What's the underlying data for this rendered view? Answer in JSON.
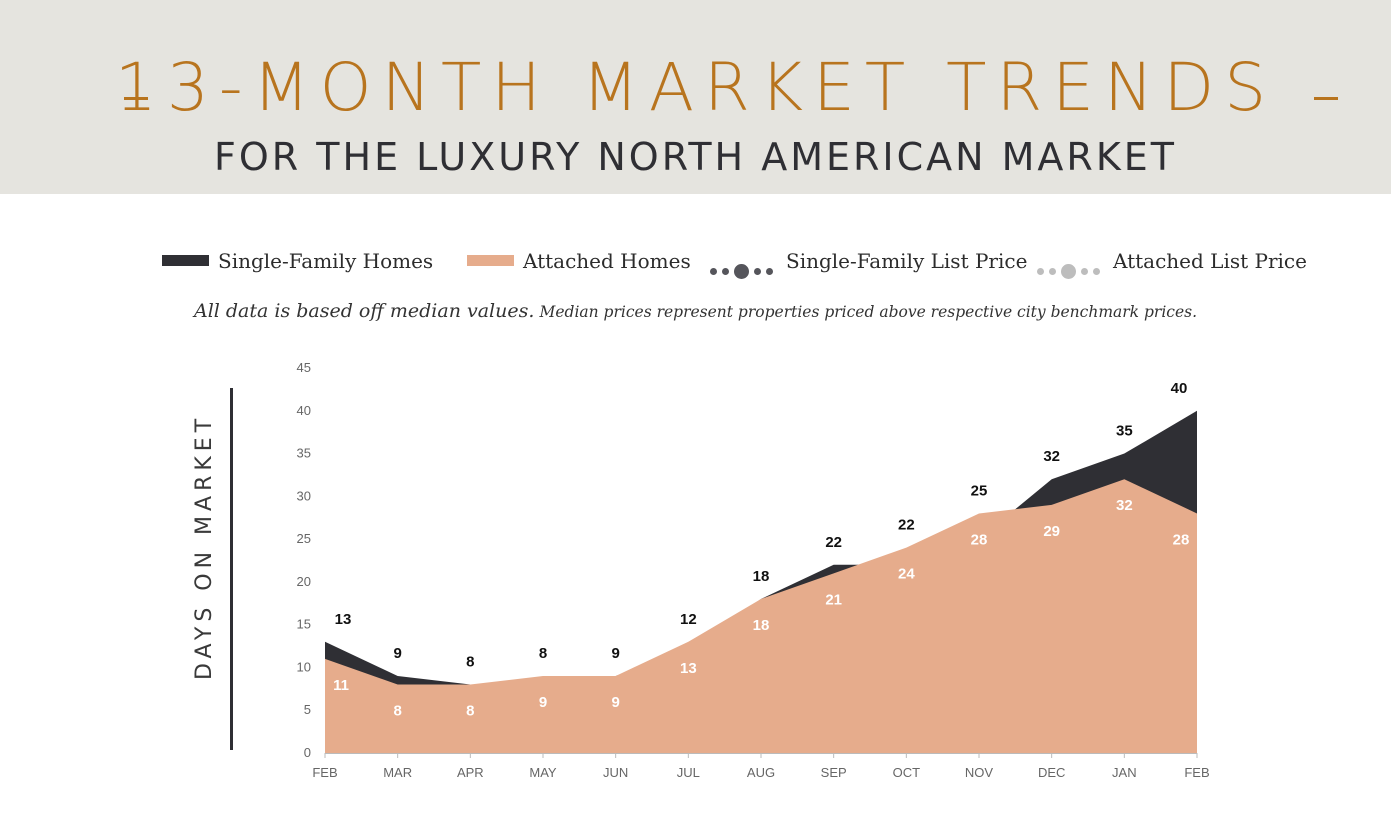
{
  "header": {
    "title": "13-MONTH MARKET TRENDS",
    "subtitle": "FOR THE LUXURY NORTH AMERICAN MARKET"
  },
  "legend": {
    "items": [
      {
        "label": "Single-Family Homes",
        "kind": "area",
        "color": "#2f2f34"
      },
      {
        "label": "Attached Homes",
        "kind": "area",
        "color": "#e6ac8c"
      },
      {
        "label": "Single-Family List Price",
        "kind": "dots",
        "color": "#55555b"
      },
      {
        "label": "Attached List Price",
        "kind": "dots",
        "color": "#bdbdbd"
      }
    ]
  },
  "note": {
    "main": "All data is based off median values.",
    "detail": "Median prices represent properties priced above respective city benchmark prices."
  },
  "colors": {
    "header_bg": "#e5e4df",
    "accent": "#b8741e",
    "single_family": "#2f2f34",
    "attached": "#e6ac8c"
  },
  "chart_data": {
    "type": "area",
    "ylabel": "DAYS ON MARKET",
    "xlabel": "",
    "ylim": [
      0,
      45
    ],
    "yticks": [
      0,
      5,
      10,
      15,
      20,
      25,
      30,
      35,
      40,
      45
    ],
    "categories": [
      "FEB",
      "MAR",
      "APR",
      "MAY",
      "JUN",
      "JUL",
      "AUG",
      "SEP",
      "OCT",
      "NOV",
      "DEC",
      "JAN",
      "FEB"
    ],
    "series": [
      {
        "name": "Single-Family Homes",
        "values": [
          13,
          9,
          8,
          8,
          9,
          12,
          18,
          22,
          22,
          25,
          32,
          35,
          40
        ]
      },
      {
        "name": "Attached Homes",
        "values": [
          11,
          8,
          8,
          9,
          9,
          13,
          18,
          21,
          24,
          28,
          29,
          32,
          28
        ]
      }
    ],
    "grid": false
  }
}
